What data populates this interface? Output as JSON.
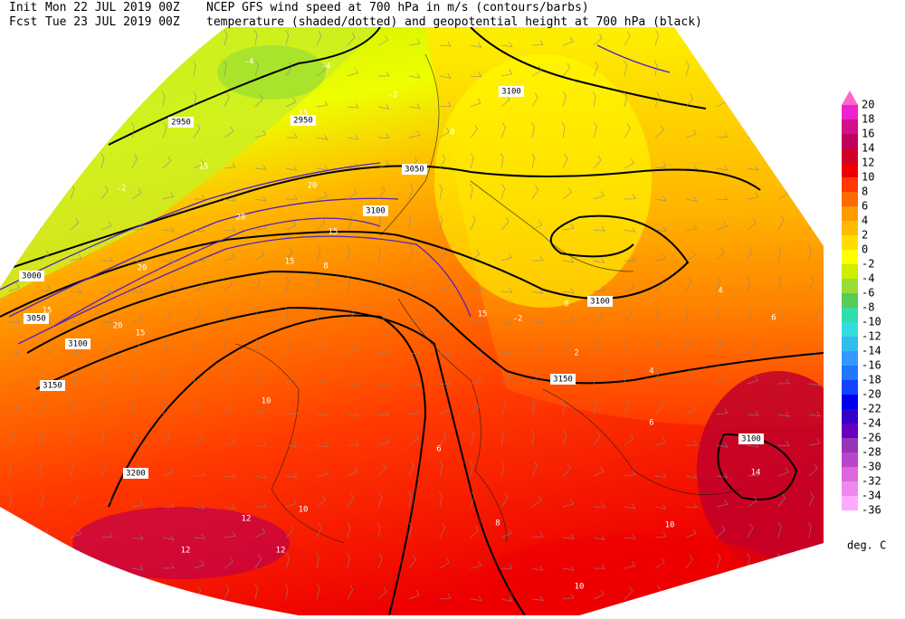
{
  "header": {
    "line1_label": "Init",
    "line1_date": "Mon 22 JUL 2019 00Z",
    "line1_text": "NCEP GFS wind speed at 700 hPa in m/s (contours/barbs)",
    "line2_label": "Fcst",
    "line2_date": "Tue 23 JUL 2019 00Z",
    "line2_text": "temperature (shaded/dotted) and geopotential height at 700 hPa (black)"
  },
  "colorbar": {
    "labels": [
      20,
      18,
      16,
      14,
      12,
      10,
      8,
      6,
      4,
      2,
      0,
      -2,
      -4,
      -6,
      -8,
      -10,
      -12,
      -14,
      -16,
      -18,
      -20,
      -22,
      -24,
      -26,
      -28,
      -30,
      -32,
      -34,
      -36
    ],
    "colors": [
      "#ff66cc",
      "#ee22cc",
      "#d0108c",
      "#c0005a",
      "#d0002a",
      "#ee0000",
      "#ff3a00",
      "#ff6a00",
      "#ff9a00",
      "#ffbb00",
      "#ffdd00",
      "#ffff00",
      "#ccee00",
      "#99dd33",
      "#55cc55",
      "#33ddaa",
      "#33dddd",
      "#33bbee",
      "#3399ff",
      "#2277ff",
      "#1144ff",
      "#0000ee",
      "#3300cc",
      "#6600bb",
      "#9933bb",
      "#bb44cc",
      "#dd66dd",
      "#ee88ee",
      "#ffaaff"
    ],
    "units": "deg. C"
  },
  "map": {
    "height_labels": [
      "2950",
      "2950",
      "3000",
      "3050",
      "3050",
      "3100",
      "3100",
      "3100",
      "3150",
      "3150",
      "3200",
      "3100",
      "3100"
    ],
    "temperature_labels": [
      "-4",
      "-4",
      "-2",
      "0",
      "-2",
      "8",
      "10",
      "12",
      "12",
      "12",
      "10",
      "10",
      "10",
      "14",
      "6",
      "4",
      "2",
      "-2",
      "0",
      "4",
      "6",
      "8",
      "6"
    ],
    "wind_labels": [
      "15",
      "15",
      "20",
      "20",
      "20",
      "15",
      "15",
      "15",
      "20",
      "15",
      "15"
    ]
  }
}
